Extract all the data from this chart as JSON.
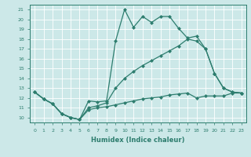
{
  "xlabel": "Humidex (Indice chaleur)",
  "background_color": "#cce8e8",
  "line_color": "#2d7d6e",
  "grid_color": "#b0d8d8",
  "ylim": [
    9.5,
    21.5
  ],
  "xlim": [
    -0.5,
    23.5
  ],
  "yticks": [
    10,
    11,
    12,
    13,
    14,
    15,
    16,
    17,
    18,
    19,
    20,
    21
  ],
  "xticks": [
    0,
    1,
    2,
    3,
    4,
    5,
    6,
    7,
    8,
    9,
    10,
    11,
    12,
    13,
    14,
    15,
    16,
    17,
    18,
    19,
    20,
    21,
    22,
    23
  ],
  "line1_x": [
    0,
    1,
    2,
    3,
    4,
    5,
    6,
    7,
    8,
    9,
    10,
    11,
    12,
    13,
    14,
    15,
    16,
    17,
    18,
    19,
    20,
    21,
    22,
    23
  ],
  "line1_y": [
    12.6,
    11.9,
    11.4,
    10.4,
    10.0,
    9.8,
    11.7,
    11.6,
    11.7,
    17.8,
    21.0,
    19.2,
    20.3,
    19.7,
    20.3,
    20.3,
    19.1,
    18.1,
    18.3,
    17.0,
    14.5,
    13.0,
    12.6,
    12.5
  ],
  "line2_x": [
    0,
    1,
    2,
    3,
    4,
    5,
    6,
    7,
    8,
    9,
    10,
    11,
    12,
    13,
    14,
    15,
    16,
    17,
    18,
    19,
    20,
    21,
    22,
    23
  ],
  "line2_y": [
    12.6,
    11.9,
    11.4,
    10.4,
    10.0,
    9.8,
    11.0,
    11.2,
    11.5,
    13.0,
    14.0,
    14.7,
    15.3,
    15.8,
    16.3,
    16.8,
    17.3,
    18.0,
    17.8,
    17.0,
    14.5,
    13.0,
    12.6,
    12.5
  ],
  "line3_x": [
    0,
    1,
    2,
    3,
    4,
    5,
    6,
    7,
    8,
    9,
    10,
    11,
    12,
    13,
    14,
    15,
    16,
    17,
    18,
    19,
    20,
    21,
    22,
    23
  ],
  "line3_y": [
    12.6,
    11.9,
    11.4,
    10.4,
    10.0,
    9.8,
    10.8,
    11.0,
    11.1,
    11.3,
    11.5,
    11.7,
    11.9,
    12.0,
    12.1,
    12.3,
    12.4,
    12.5,
    12.0,
    12.2,
    12.2,
    12.2,
    12.5,
    12.5
  ]
}
